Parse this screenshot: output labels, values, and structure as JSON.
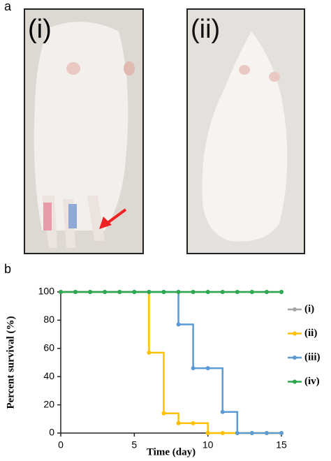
{
  "panel_a": {
    "label": "a",
    "photos": [
      {
        "label": "(i)"
      },
      {
        "label": "(ii)"
      }
    ]
  },
  "panel_b": {
    "label": "b"
  },
  "chart_data": {
    "type": "step-line",
    "xlabel": "Time (day)",
    "ylabel": "Percent survival (%)",
    "x": [
      0,
      1,
      2,
      3,
      4,
      5,
      6,
      7,
      8,
      9,
      10,
      11,
      12,
      13,
      14,
      15
    ],
    "series": [
      {
        "name": "(i)",
        "color": "#a5a5a5",
        "values": [
          100,
          100,
          100,
          100,
          100,
          100,
          100,
          100,
          100,
          100,
          100,
          100,
          100,
          100,
          100,
          100
        ]
      },
      {
        "name": "(ii)",
        "color": "#ffc000",
        "values": [
          100,
          100,
          100,
          100,
          100,
          100,
          57,
          14,
          7,
          7,
          0,
          0,
          0,
          0,
          0,
          0
        ]
      },
      {
        "name": "(iii)",
        "color": "#5b9bd5",
        "values": [
          100,
          100,
          100,
          100,
          100,
          100,
          100,
          100,
          77,
          46,
          46,
          15,
          0,
          0,
          0,
          0
        ]
      },
      {
        "name": "(iv)",
        "color": "#2ca94f",
        "values": [
          100,
          100,
          100,
          100,
          100,
          100,
          100,
          100,
          100,
          100,
          100,
          100,
          100,
          100,
          100,
          100
        ]
      }
    ],
    "xlim": [
      0,
      15
    ],
    "xticks": [
      0,
      5,
      10,
      15
    ],
    "ylim": [
      0,
      100
    ],
    "yticks": [
      0,
      20,
      40,
      60,
      80,
      100
    ],
    "legend": "right"
  }
}
